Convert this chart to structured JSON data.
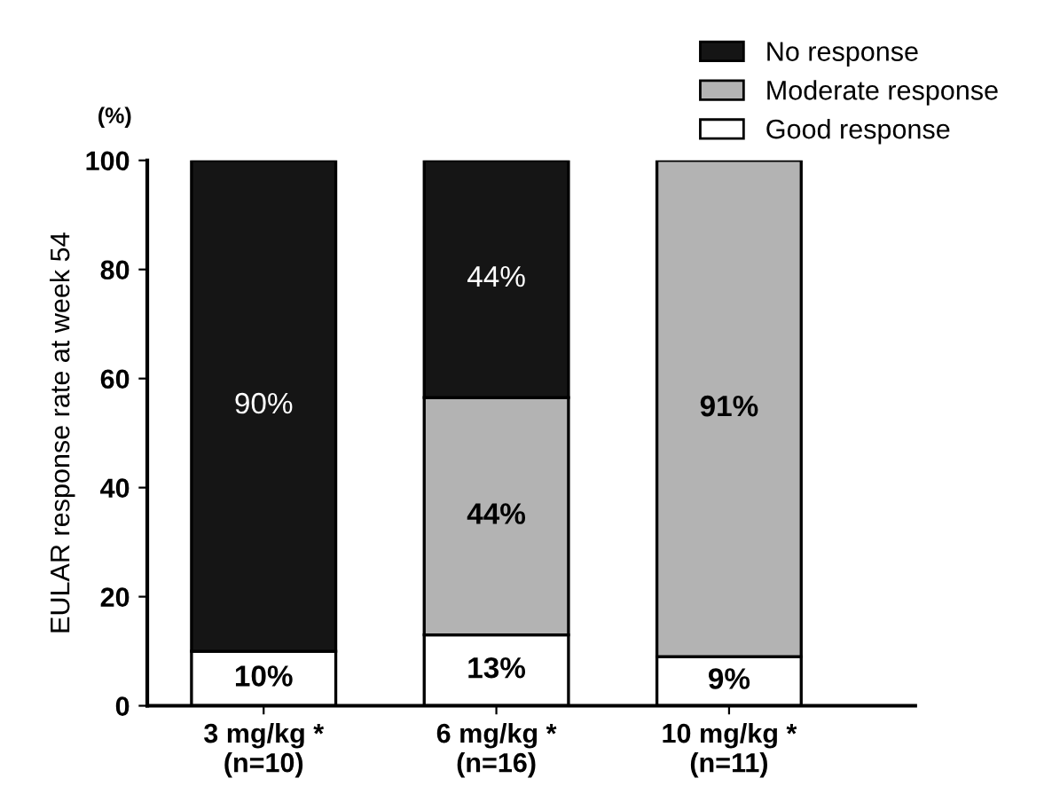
{
  "chart_data": {
    "type": "bar",
    "stacked": true,
    "ylabel": "EULAR response rate at week 54",
    "annotations": [
      "(%)"
    ],
    "categories": [
      "3 mg/kg *\n(n=10)",
      "6 mg/kg *\n(n=16)",
      "10 mg/kg *\n(n=11)"
    ],
    "series": [
      {
        "name": "Good response",
        "color": "#ffffff",
        "values": [
          10,
          13,
          9
        ],
        "value_labels": [
          "10%",
          "13%",
          "9%"
        ]
      },
      {
        "name": "Moderate response",
        "color": "#b3b3b3",
        "values": [
          null,
          43.5,
          91
        ],
        "value_labels": [
          null,
          "44%",
          "91%"
        ]
      },
      {
        "name": "No response",
        "color": "#151515",
        "values": [
          90,
          43.5,
          null
        ],
        "value_labels": [
          "90%",
          "44%",
          null
        ]
      }
    ],
    "ylim": [
      0,
      100
    ],
    "yticks": [
      0,
      20,
      40,
      60,
      80,
      100
    ],
    "grid": false,
    "legend": "top right"
  }
}
